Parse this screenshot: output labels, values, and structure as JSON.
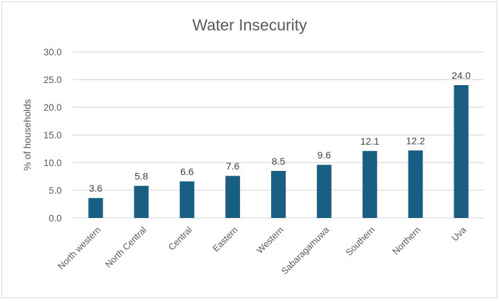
{
  "chart_data": {
    "type": "bar",
    "title": "Water Insecurity",
    "xlabel": "",
    "ylabel": "% of households",
    "categories": [
      "North western",
      "North Central",
      "Central",
      "Eastern",
      "Western",
      "Sabaragamuwa",
      "Southern",
      "Northern",
      "Uva"
    ],
    "values": [
      3.6,
      5.8,
      6.6,
      7.6,
      8.5,
      9.6,
      12.1,
      12.2,
      24.0
    ],
    "data_labels": [
      "3.6",
      "5.8",
      "6.6",
      "7.6",
      "8.5",
      "9.6",
      "12.1",
      "12.2",
      "24.0"
    ],
    "ylim": [
      0,
      30
    ],
    "yticks": [
      0,
      5,
      10,
      15,
      20,
      25,
      30
    ],
    "ytick_labels": [
      "0.0",
      "5.0",
      "10.0",
      "15.0",
      "20.0",
      "25.0",
      "30.0"
    ],
    "grid": true,
    "legend": "none",
    "bar_color": "#195e83"
  }
}
